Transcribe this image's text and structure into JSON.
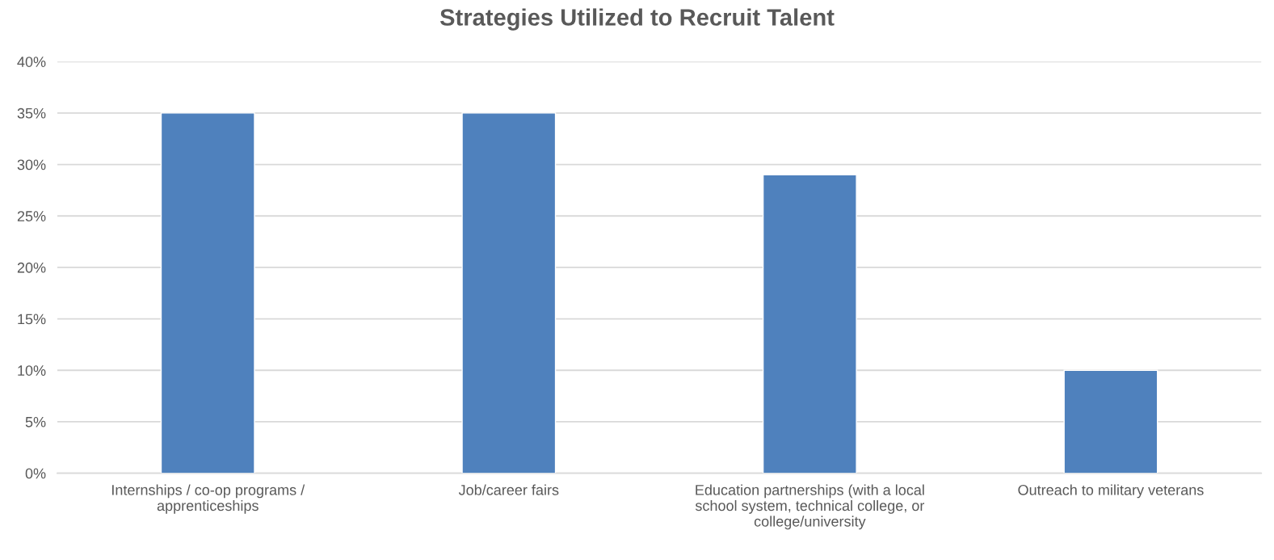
{
  "chart_data": {
    "type": "bar",
    "title": "Strategies Utilized to Recruit Talent",
    "categories": [
      "Internships / co-op programs /\napprenticeships",
      "Job/career fairs",
      "Education partnerships (with a local\nschool system, technical college, or\ncollege/university",
      "Outreach to military veterans"
    ],
    "values": [
      35,
      35,
      29,
      10
    ],
    "color": "#4f81bd",
    "ylim": [
      0,
      40
    ],
    "yticks": [
      {
        "value": 0,
        "label": "0%"
      },
      {
        "value": 5,
        "label": "5%"
      },
      {
        "value": 10,
        "label": "10%"
      },
      {
        "value": 15,
        "label": "15%"
      },
      {
        "value": 20,
        "label": "20%"
      },
      {
        "value": 25,
        "label": "25%"
      },
      {
        "value": 30,
        "label": "30%"
      },
      {
        "value": 35,
        "label": "35%"
      },
      {
        "value": 40,
        "label": "40%"
      }
    ],
    "grid": "y",
    "legend": false
  }
}
